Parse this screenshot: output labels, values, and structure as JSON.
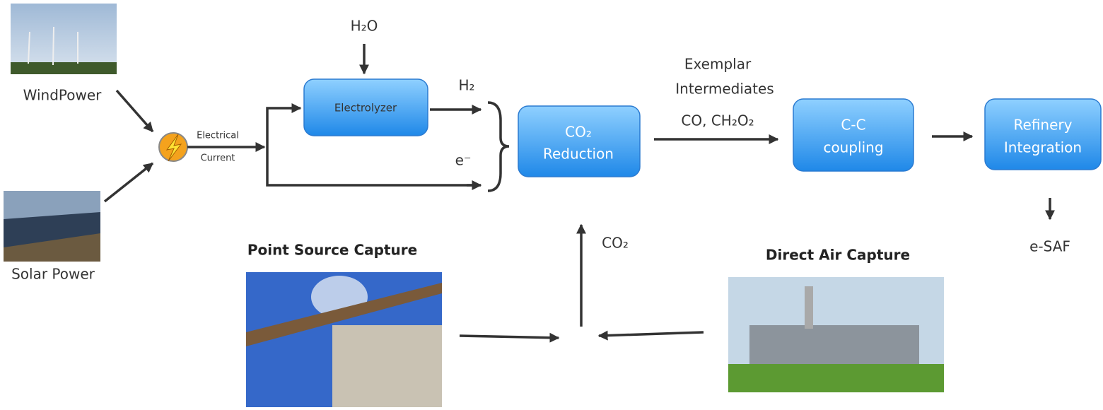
{
  "sources": {
    "wind": "WindPower",
    "solar": "Solar Power",
    "current": [
      "Electrical",
      "Current"
    ]
  },
  "inputs": {
    "water": "H₂O",
    "hydrogen": "H₂",
    "electron": "e⁻",
    "co2": "CO₂"
  },
  "nodes": [
    {
      "id": "electrolyzer",
      "lines": [
        "Electrolyzer"
      ]
    },
    {
      "id": "reduction",
      "lines": [
        "CO₂",
        "Reduction"
      ]
    },
    {
      "id": "coupling",
      "lines": [
        "C-C",
        "coupling"
      ]
    },
    {
      "id": "refinery",
      "lines": [
        "Refinery",
        "Integration"
      ]
    }
  ],
  "intermediates": {
    "lines": [
      "Exemplar",
      "Intermediates"
    ],
    "species": "CO, CH₂O₂"
  },
  "product": "e-SAF",
  "capture": {
    "point": "Point Source Capture",
    "direct": "Direct Air Capture"
  }
}
